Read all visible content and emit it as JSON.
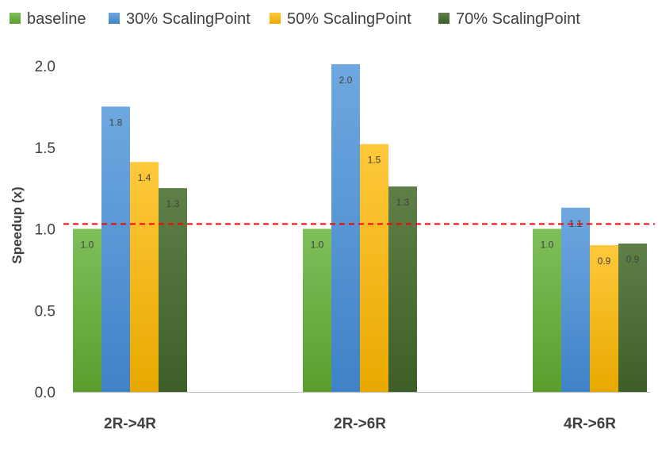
{
  "chart_data": {
    "type": "bar",
    "title": "",
    "xlabel": "",
    "ylabel": "Speedup (x)",
    "ylim": [
      0,
      2.0
    ],
    "yticks": [
      "0.0",
      "0.5",
      "1.0",
      "1.5",
      "2.0"
    ],
    "ytick_values": [
      0,
      0.5,
      1.0,
      1.5,
      2.0
    ],
    "categories": [
      "2R->4R",
      "2R->6R",
      "4R->6R"
    ],
    "legend_position": "top",
    "grid": false,
    "reference_line": {
      "value": 1.03,
      "style": "dashed",
      "color": "#ff0000"
    },
    "series": [
      {
        "name": "baseline",
        "values": [
          1.0,
          1.0,
          1.0
        ],
        "labels": [
          "1.0",
          "1.0",
          "1.0"
        ],
        "color_top": "#7fbf5a",
        "color_bottom": "#5a9e2f"
      },
      {
        "name": "30% ScalingPoint",
        "values": [
          1.75,
          2.01,
          1.13
        ],
        "labels": [
          "1.8",
          "2.0",
          "1.1"
        ],
        "color_top": "#6fa8e0",
        "color_bottom": "#3f82c8"
      },
      {
        "name": "50% ScalingPoint",
        "values": [
          1.41,
          1.52,
          0.9
        ],
        "labels": [
          "1.4",
          "1.5",
          "0.9"
        ],
        "color_top": "#ffc93c",
        "color_bottom": "#e8a800"
      },
      {
        "name": "70% ScalingPoint",
        "values": [
          1.25,
          1.26,
          0.91
        ],
        "labels": [
          "1.3",
          "1.3",
          "0.9"
        ],
        "color_top": "#5f7f48",
        "color_bottom": "#3d5f27"
      }
    ]
  }
}
